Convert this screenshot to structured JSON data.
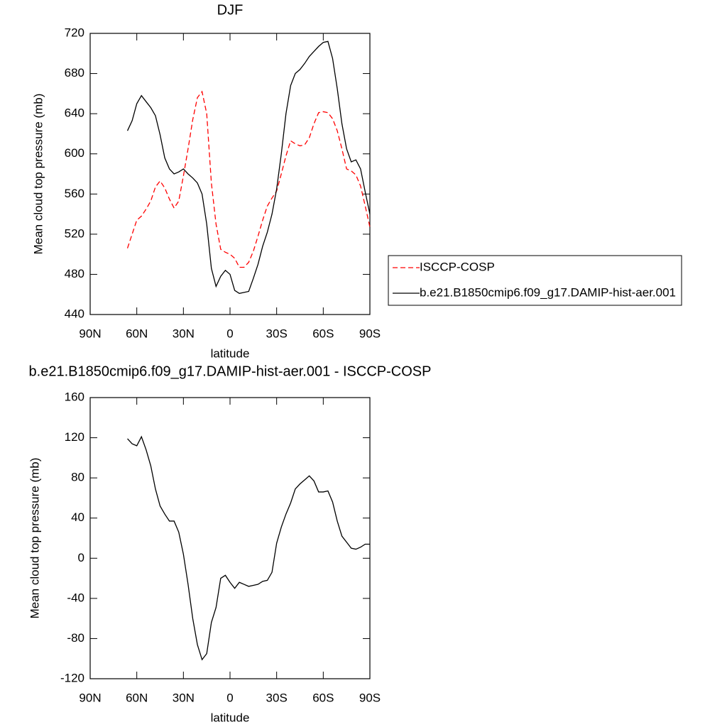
{
  "chart_data": [
    {
      "type": "line",
      "title": "DJF",
      "xlabel": "latitude",
      "ylabel": "Mean cloud top pressure (mb)",
      "x": [
        66,
        63,
        60,
        57,
        54,
        51,
        48,
        45,
        42,
        39,
        36,
        33,
        30,
        27,
        24,
        21,
        18,
        15,
        12,
        9,
        6,
        3,
        0,
        -3,
        -6,
        -9,
        -12,
        -15,
        -18,
        -21,
        -24,
        -27,
        -30,
        -33,
        -36,
        -39,
        -42,
        -45,
        -48,
        -51,
        -54,
        -57,
        -60,
        -63,
        -66,
        -69,
        -72,
        -75,
        -78,
        -81,
        -84,
        -87,
        -90
      ],
      "series": [
        {
          "name": "ISCCP-COSP",
          "color": "#ff0000",
          "style": "dashed",
          "values": [
            506,
            520,
            534,
            538,
            545,
            553,
            567,
            573,
            566,
            555,
            546,
            553,
            578,
            605,
            634,
            656,
            662,
            640,
            571,
            530,
            505,
            502,
            500,
            496,
            487,
            487,
            492,
            503,
            518,
            534,
            548,
            556,
            563,
            580,
            598,
            613,
            610,
            608,
            609,
            616,
            630,
            641,
            642,
            641,
            635,
            623,
            605,
            585,
            583,
            579,
            568,
            548,
            527
          ]
        },
        {
          "name": "b.e21.B1850cmip6.f09_g17.DAMIP-hist-aer.001",
          "color": "#000000",
          "style": "solid",
          "values": [
            623,
            633,
            650,
            658,
            652,
            646,
            638,
            619,
            596,
            585,
            580,
            582,
            585,
            580,
            576,
            571,
            560,
            530,
            486,
            468,
            478,
            484,
            480,
            464,
            461,
            462,
            463,
            476,
            490,
            508,
            522,
            540,
            565,
            600,
            640,
            668,
            680,
            684,
            690,
            697,
            702,
            707,
            711,
            712,
            695,
            665,
            630,
            605,
            592,
            594,
            585,
            562,
            540
          ]
        }
      ],
      "xlim": [
        90,
        -90
      ],
      "xticks": [
        {
          "value": 90,
          "label": "90N"
        },
        {
          "value": 60,
          "label": "60N"
        },
        {
          "value": 30,
          "label": "30N"
        },
        0,
        {
          "value": -30,
          "label": "30S"
        },
        {
          "value": -60,
          "label": "60S"
        },
        {
          "value": -90,
          "label": "90S"
        }
      ],
      "ylim": [
        440,
        720
      ],
      "yticks": [
        440,
        480,
        520,
        560,
        600,
        640,
        680,
        720
      ],
      "grid": false,
      "legend_position": "right"
    },
    {
      "type": "line",
      "title": "b.e21.B1850cmip6.f09_g17.DAMIP-hist-aer.001 - ISCCP-COSP",
      "xlabel": "latitude",
      "ylabel": "Mean cloud top pressure (mb)",
      "x": [
        66,
        63,
        60,
        57,
        54,
        51,
        48,
        45,
        42,
        39,
        36,
        33,
        30,
        27,
        24,
        21,
        18,
        15,
        12,
        9,
        6,
        3,
        0,
        -3,
        -6,
        -9,
        -12,
        -15,
        -18,
        -21,
        -24,
        -27,
        -30,
        -33,
        -36,
        -39,
        -42,
        -45,
        -48,
        -51,
        -54,
        -57,
        -60,
        -63,
        -66,
        -69,
        -72,
        -75,
        -78,
        -81,
        -84,
        -87,
        -90
      ],
      "values": [
        119,
        114,
        112,
        121,
        108,
        92,
        69,
        52,
        44,
        37,
        37,
        26,
        4,
        -26,
        -60,
        -86,
        -101,
        -95,
        -64,
        -49,
        -20,
        -17,
        -24,
        -30,
        -24,
        -26,
        -28,
        -27,
        -26,
        -23,
        -22,
        -14,
        15,
        31,
        44,
        55,
        69,
        74,
        78,
        82,
        77,
        66,
        66,
        67,
        56,
        37,
        22,
        16,
        10,
        9,
        11,
        14,
        14
      ],
      "color": "#000000",
      "xlim": [
        90,
        -90
      ],
      "xticks": [
        {
          "value": 90,
          "label": "90N"
        },
        {
          "value": 60,
          "label": "60N"
        },
        {
          "value": 30,
          "label": "30N"
        },
        0,
        {
          "value": -30,
          "label": "30S"
        },
        {
          "value": -60,
          "label": "60S"
        },
        {
          "value": -90,
          "label": "90S"
        }
      ],
      "ylim": [
        -120,
        160
      ],
      "yticks": [
        -120,
        -80,
        -40,
        0,
        40,
        80,
        120,
        160
      ],
      "grid": false
    }
  ]
}
